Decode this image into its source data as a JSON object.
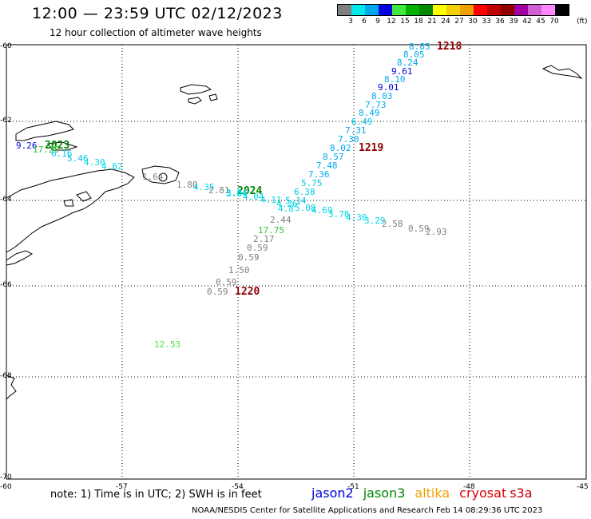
{
  "header": {
    "title": "12:00 — 23:59 UTC 02/12/2023",
    "subtitle": "12 hour collection of altimeter wave heights"
  },
  "legend": {
    "ticks": [
      "3",
      "6",
      "9",
      "12",
      "15",
      "18",
      "21",
      "24",
      "27",
      "30",
      "33",
      "36",
      "39",
      "42",
      "45",
      "70"
    ],
    "unit": "(ft)",
    "colors": [
      "#808080",
      "#00e8e8",
      "#00a8f0",
      "#0000e0",
      "#40e840",
      "#00b000",
      "#008800",
      "#ffff00",
      "#f0d000",
      "#f0a000",
      "#ff0000",
      "#c00000",
      "#900000",
      "#a000a0",
      "#d060d0",
      "#ff88ff",
      "#000000"
    ]
  },
  "axes": {
    "lat_labels": [
      "-60",
      "-62",
      "-64",
      "-66",
      "-68",
      "-70"
    ],
    "lon_labels": [
      "-60",
      "-57",
      "-54",
      "-51",
      "-48",
      "-45"
    ]
  },
  "time_labels": [
    {
      "text": "1218",
      "color": "#8b0000"
    },
    {
      "text": "1219",
      "color": "#8b0000"
    },
    {
      "text": "1220",
      "color": "#8b0000"
    },
    {
      "text": "2023",
      "color": "#008800"
    },
    {
      "text": "2024",
      "color": "#008800"
    }
  ],
  "wave_heights": [
    {
      "v": "8.85",
      "c": "#00a8f0"
    },
    {
      "v": "8.05",
      "c": "#00a8f0"
    },
    {
      "v": "8.24",
      "c": "#00a8f0"
    },
    {
      "v": "9.61",
      "c": "#0000e0"
    },
    {
      "v": "8.10",
      "c": "#00a8f0"
    },
    {
      "v": "9.01",
      "c": "#0000e0"
    },
    {
      "v": "8.03",
      "c": "#00a8f0"
    },
    {
      "v": "7.73",
      "c": "#00a8f0"
    },
    {
      "v": "8.49",
      "c": "#00a8f0"
    },
    {
      "v": "6.49",
      "c": "#00c8e8"
    },
    {
      "v": "7.31",
      "c": "#00a8f0"
    },
    {
      "v": "7.30",
      "c": "#00a8f0"
    },
    {
      "v": "8.02",
      "c": "#00a8f0"
    },
    {
      "v": "8.57",
      "c": "#00a8f0"
    },
    {
      "v": "7.48",
      "c": "#00a8f0"
    },
    {
      "v": "7.36",
      "c": "#00a8f0"
    },
    {
      "v": "5.75",
      "c": "#00c8e8"
    },
    {
      "v": "6.38",
      "c": "#00c8e8"
    },
    {
      "v": "5.14",
      "c": "#00c8e8"
    },
    {
      "v": "4.11",
      "c": "#00d8e8"
    },
    {
      "v": "4.04",
      "c": "#00d8e8"
    },
    {
      "v": "3.64",
      "c": "#00d8e8"
    },
    {
      "v": "4.26",
      "c": "#00d8e8"
    },
    {
      "v": "4.8",
      "c": "#00d8e8"
    },
    {
      "v": "5.08",
      "c": "#00c8e8"
    },
    {
      "v": "4.69",
      "c": "#00d8e8"
    },
    {
      "v": "3.78",
      "c": "#00d8e8"
    },
    {
      "v": "4.30",
      "c": "#00d8e8"
    },
    {
      "v": "3.29",
      "c": "#00d8e8"
    },
    {
      "v": "2.58",
      "c": "#808080"
    },
    {
      "v": "0.59",
      "c": "#808080"
    },
    {
      "v": "2.93",
      "c": "#808080"
    },
    {
      "v": "2.44",
      "c": "#808080"
    },
    {
      "v": "17.75",
      "c": "#30c030"
    },
    {
      "v": "2.17",
      "c": "#808080"
    },
    {
      "v": "0.59",
      "c": "#808080"
    },
    {
      "v": "0.59",
      "c": "#808080"
    },
    {
      "v": "1.50",
      "c": "#808080"
    },
    {
      "v": "0.59",
      "c": "#808080"
    },
    {
      "v": "0.59",
      "c": "#808080"
    },
    {
      "v": "12.53",
      "c": "#40e840"
    },
    {
      "v": "9.26",
      "c": "#0000e0"
    },
    {
      "v": "17.28",
      "c": "#30c030"
    },
    {
      "v": "6.16",
      "c": "#00c8e8"
    },
    {
      "v": "5.46",
      "c": "#00c8e8"
    },
    {
      "v": "4.30",
      "c": "#00d8e8"
    },
    {
      "v": "4.62",
      "c": "#00d8e8"
    },
    {
      "v": "1.64",
      "c": "#808080"
    },
    {
      "v": "1.80",
      "c": "#808080"
    },
    {
      "v": "4.35",
      "c": "#00d8e8"
    },
    {
      "v": "2.81",
      "c": "#808080"
    },
    {
      "v": "3.84",
      "c": "#00d8e8"
    }
  ],
  "footer": {
    "note": "note: 1) Time is in UTC; 2) SWH is in feet",
    "credit": "NOAA/NESDIS Center for Satellite Applications and Research    Feb 14 08:29:36 UTC 2023"
  },
  "satellites": [
    {
      "name": "jason2",
      "color": "#0000e0"
    },
    {
      "name": "jason3",
      "color": "#008800"
    },
    {
      "name": "altika",
      "color": "#f0a000"
    },
    {
      "name": "cryosat",
      "color": "#e00000"
    },
    {
      "name": "s3a",
      "color": "#c00000"
    }
  ]
}
